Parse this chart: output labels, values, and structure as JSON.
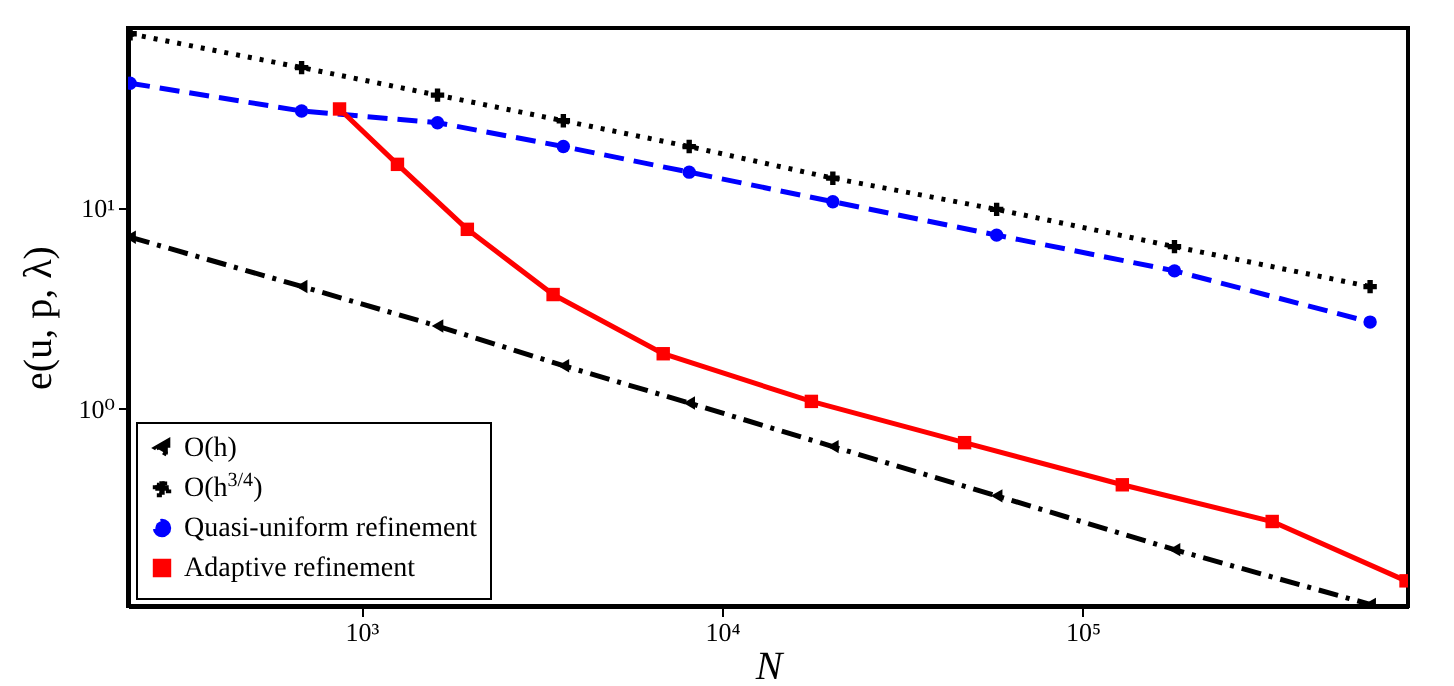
{
  "chart_data": {
    "type": "line",
    "xlabel": "N",
    "ylabel": "e(u, p, λ)",
    "log": "xy",
    "grid": false,
    "legend": "bottom left",
    "xlim": [
      225,
      800000
    ],
    "ylim": [
      0.105,
      78
    ],
    "xticks": [
      {
        "value": 1000,
        "label": "10³"
      },
      {
        "value": 10000,
        "label": "10⁴"
      },
      {
        "value": 100000,
        "label": "10⁵"
      }
    ],
    "yticks": [
      {
        "value": 1,
        "label": "10⁰"
      },
      {
        "value": 10,
        "label": "10¹"
      }
    ],
    "series": [
      {
        "name": "O(h)",
        "color": "#000000",
        "marker": "triangle",
        "line_style": "dashdot",
        "x": [
          228,
          682,
          1625,
          3630,
          8110,
          20300,
          57800,
          180000,
          628000
        ],
        "values": [
          7.13,
          4.06,
          2.58,
          1.64,
          1.07,
          0.65,
          0.37,
          0.2,
          0.107
        ]
      },
      {
        "name": "O(h$^{3/4}$)",
        "color": "#000000",
        "marker": "cross",
        "line_style": "dotted",
        "x": [
          228,
          682,
          1625,
          3630,
          8110,
          20300,
          57800,
          180000,
          628000
        ],
        "values": [
          73,
          49.6,
          36.2,
          27,
          20.1,
          14,
          9.8,
          6.4,
          4.05
        ]
      },
      {
        "name": "Quasi-uniform refinement",
        "color": "#0000ff",
        "marker": "circle",
        "line_style": "dashed",
        "x": [
          228,
          682,
          1625,
          3630,
          8110,
          20300,
          57800,
          180000,
          628000
        ],
        "values": [
          41.5,
          30.2,
          26.4,
          20.1,
          15,
          10.7,
          7.3,
          4.85,
          2.7
        ]
      },
      {
        "name": "Adaptive refinement",
        "color": "#ff0000",
        "marker": "square",
        "line_style": "solid",
        "x": [
          869,
          1258,
          1966,
          3400,
          6870,
          17700,
          47100,
          129000,
          336000,
          790000
        ],
        "values": [
          30.9,
          16.4,
          7.8,
          3.7,
          1.88,
          1.09,
          0.68,
          0.42,
          0.276,
          0.14
        ]
      }
    ]
  }
}
